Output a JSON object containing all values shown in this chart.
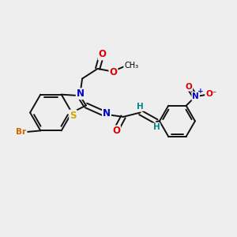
{
  "background_color": "#eeeeee",
  "figsize": [
    3.0,
    3.0
  ],
  "dpi": 100,
  "atom_colors": {
    "C": "#000000",
    "N": "#0000cc",
    "O": "#dd0000",
    "S": "#ccaa00",
    "Br": "#cc6600",
    "H": "#008888"
  },
  "bond_color": "#111111",
  "bond_width": 1.4,
  "font_size": 7.5
}
